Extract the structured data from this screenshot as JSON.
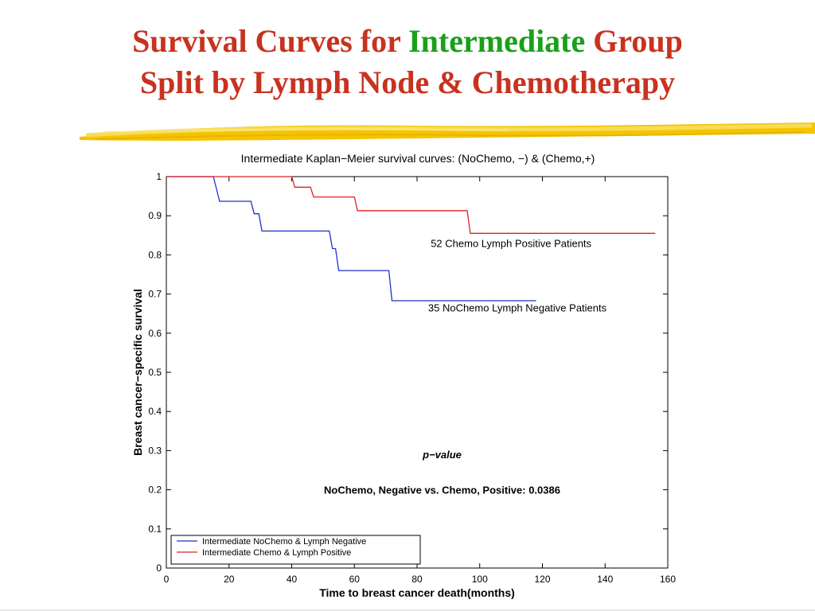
{
  "slide": {
    "title_part1": "Survival Curves for ",
    "title_accent": "Intermediate",
    "title_part2": " Group",
    "title_line2": "Split by Lymph Node & Chemotherapy",
    "title_color": "#c8321e",
    "accent_color": "#1aa01a"
  },
  "chart_data": {
    "type": "line",
    "title": "Intermediate Kaplan−Meier survival curves: (NoChemo, −) & (Chemo,+)",
    "xlabel": "Time to breast cancer death(months)",
    "ylabel": "Breast cancer−specific survival",
    "xlim": [
      0,
      160
    ],
    "ylim": [
      0,
      1
    ],
    "xticks": [
      "0",
      "20",
      "40",
      "60",
      "80",
      "100",
      "120",
      "140",
      "160"
    ],
    "yticks": [
      "0",
      "0.1",
      "0.2",
      "0.3",
      "0.4",
      "0.5",
      "0.6",
      "0.7",
      "0.8",
      "0.9",
      "1"
    ],
    "grid": false,
    "legend_position": "bottom-left",
    "series": [
      {
        "name": "Intermediate NoChemo & Lymph Negative",
        "color": "#1f2fd1",
        "step": true,
        "points": [
          [
            0,
            1.0
          ],
          [
            15,
            1.0
          ],
          [
            17,
            0.937
          ],
          [
            27,
            0.937
          ],
          [
            28,
            0.905
          ],
          [
            29.5,
            0.905
          ],
          [
            30.5,
            0.861
          ],
          [
            52,
            0.861
          ],
          [
            53,
            0.816
          ],
          [
            54,
            0.816
          ],
          [
            55,
            0.76
          ],
          [
            71,
            0.76
          ],
          [
            72,
            0.683
          ],
          [
            118,
            0.683
          ]
        ]
      },
      {
        "name": "Intermediate Chemo & Lymph Positive",
        "color": "#e02020",
        "step": true,
        "points": [
          [
            0,
            1.0
          ],
          [
            40,
            1.0
          ],
          [
            41,
            0.973
          ],
          [
            46,
            0.973
          ],
          [
            47,
            0.948
          ],
          [
            60,
            0.948
          ],
          [
            61,
            0.913
          ],
          [
            96,
            0.913
          ],
          [
            97,
            0.855
          ],
          [
            156,
            0.855
          ]
        ]
      }
    ],
    "annotations": [
      {
        "text": "52 Chemo Lymph Positive Patients",
        "x": 110,
        "y": 0.82
      },
      {
        "text": "35 NoChemo Lymph Negative Patients",
        "x": 112,
        "y": 0.655
      },
      {
        "text": "p−value",
        "x": 88,
        "y": 0.28
      },
      {
        "text": "NoChemo, Negative vs. Chemo, Positive: 0.0386",
        "x": 88,
        "y": 0.19
      }
    ]
  }
}
